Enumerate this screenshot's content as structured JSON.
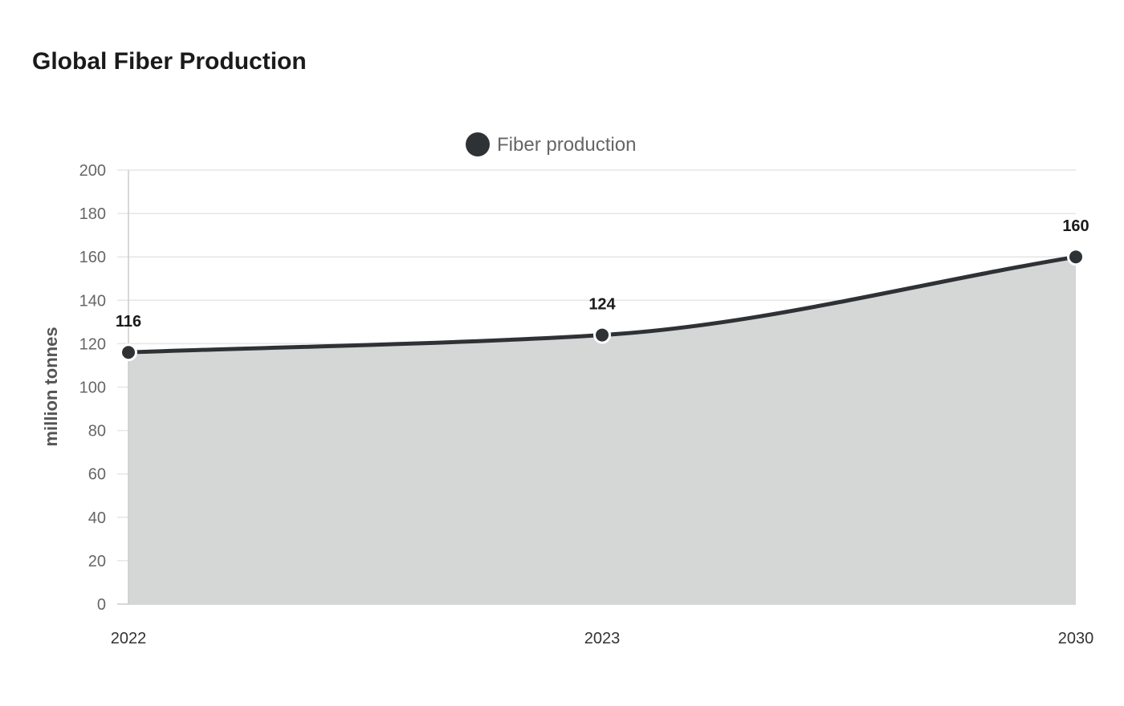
{
  "title": "Global Fiber Production",
  "chart_data": {
    "type": "area",
    "title": "Global Fiber Production",
    "categories": [
      "2022",
      "2023",
      "2030"
    ],
    "series": [
      {
        "name": "Fiber production",
        "values": [
          116,
          124,
          160
        ],
        "color": "#2f3235"
      }
    ],
    "xlabel": "",
    "ylabel": "million tonnes",
    "ylim": [
      0,
      200
    ],
    "yticks": [
      0,
      20,
      40,
      60,
      80,
      100,
      120,
      140,
      160,
      180,
      200
    ],
    "grid": true,
    "legend_position": "top-center",
    "area_fill_color": "#d5d6d6",
    "data_labels": [
      "116",
      "124",
      "160"
    ]
  }
}
